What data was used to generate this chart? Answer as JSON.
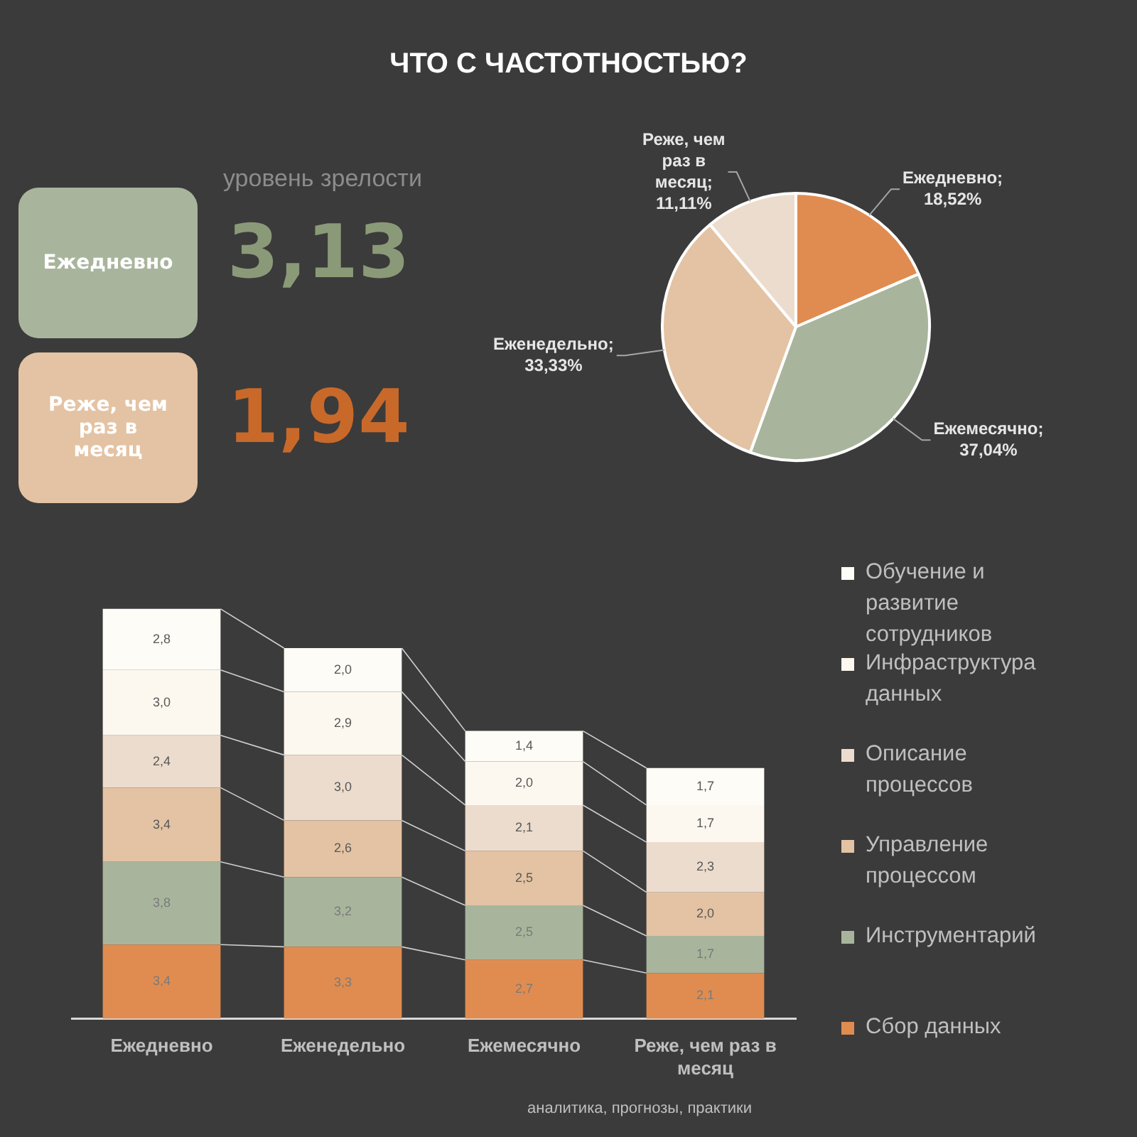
{
  "chart_data": [
    {
      "type": "other",
      "title": "ЧТО С ЧАСТОТНОСТЬЮ?",
      "subtitle": "уровень зрелости",
      "categories": [
        "Ежедневно",
        "Реже, чем раз в месяц"
      ],
      "values": [
        3.13,
        1.94
      ],
      "value_labels": [
        "3,13",
        "1,94"
      ],
      "colors": [
        "#a8b59c",
        "#e3c3a3"
      ]
    },
    {
      "type": "pie",
      "categories": [
        "Ежедневно",
        "Ежемесячно",
        "Еженедельно",
        "Реже, чем раз в месяц"
      ],
      "values": [
        18.52,
        37.04,
        33.33,
        11.11
      ],
      "value_labels": [
        "; 18,52%",
        "; 37,04%",
        "; 33,33%",
        "; 11,11%"
      ],
      "colors": [
        "#e08c50",
        "#a8b59c",
        "#e3c3a3",
        "#ecdccd"
      ]
    },
    {
      "type": "bar",
      "stacked": true,
      "legend": "right",
      "categories": [
        "Ежедневно",
        "Еженедельно",
        "Ежемесячно",
        "Реже, чем раз в месяц"
      ],
      "annotations": [
        "аналитика, прогнозы, практики"
      ],
      "series": [
        {
          "name": "Сбор данных",
          "color": "#e08c50",
          "values": [
            3.4,
            3.3,
            2.7,
            2.1
          ],
          "value_labels": [
            "3,4",
            "3,3",
            "2,7",
            "2,1"
          ]
        },
        {
          "name": "Инструментарий",
          "color": "#a8b59c",
          "values": [
            3.8,
            3.2,
            2.5,
            1.7
          ],
          "value_labels": [
            "3,8",
            "3,2",
            "2,5",
            "1,7"
          ]
        },
        {
          "name": "Управление процессом",
          "color": "#e3c3a3",
          "values": [
            3.4,
            2.6,
            2.5,
            2.0
          ],
          "value_labels": [
            "3,4",
            "2,6",
            "2,5",
            "2,0"
          ]
        },
        {
          "name": "Описание процессов",
          "color": "#ecdccd",
          "values": [
            2.4,
            3.0,
            2.1,
            2.3
          ],
          "value_labels": [
            "2,4",
            "3,0",
            "2,1",
            "2,3"
          ]
        },
        {
          "name": "Инфраструктура данных",
          "color": "#fdf8ef",
          "values": [
            3.0,
            2.9,
            2.0,
            1.7
          ],
          "value_labels": [
            "3,0",
            "2,9",
            "2,0",
            "1,7"
          ]
        },
        {
          "name": "Обучение и развитие сотрудников",
          "color": "#fefcf6",
          "values": [
            2.8,
            2.0,
            1.4,
            1.7
          ],
          "value_labels": [
            "2,8",
            "2,0",
            "1,4",
            "1,7"
          ]
        }
      ]
    }
  ]
}
